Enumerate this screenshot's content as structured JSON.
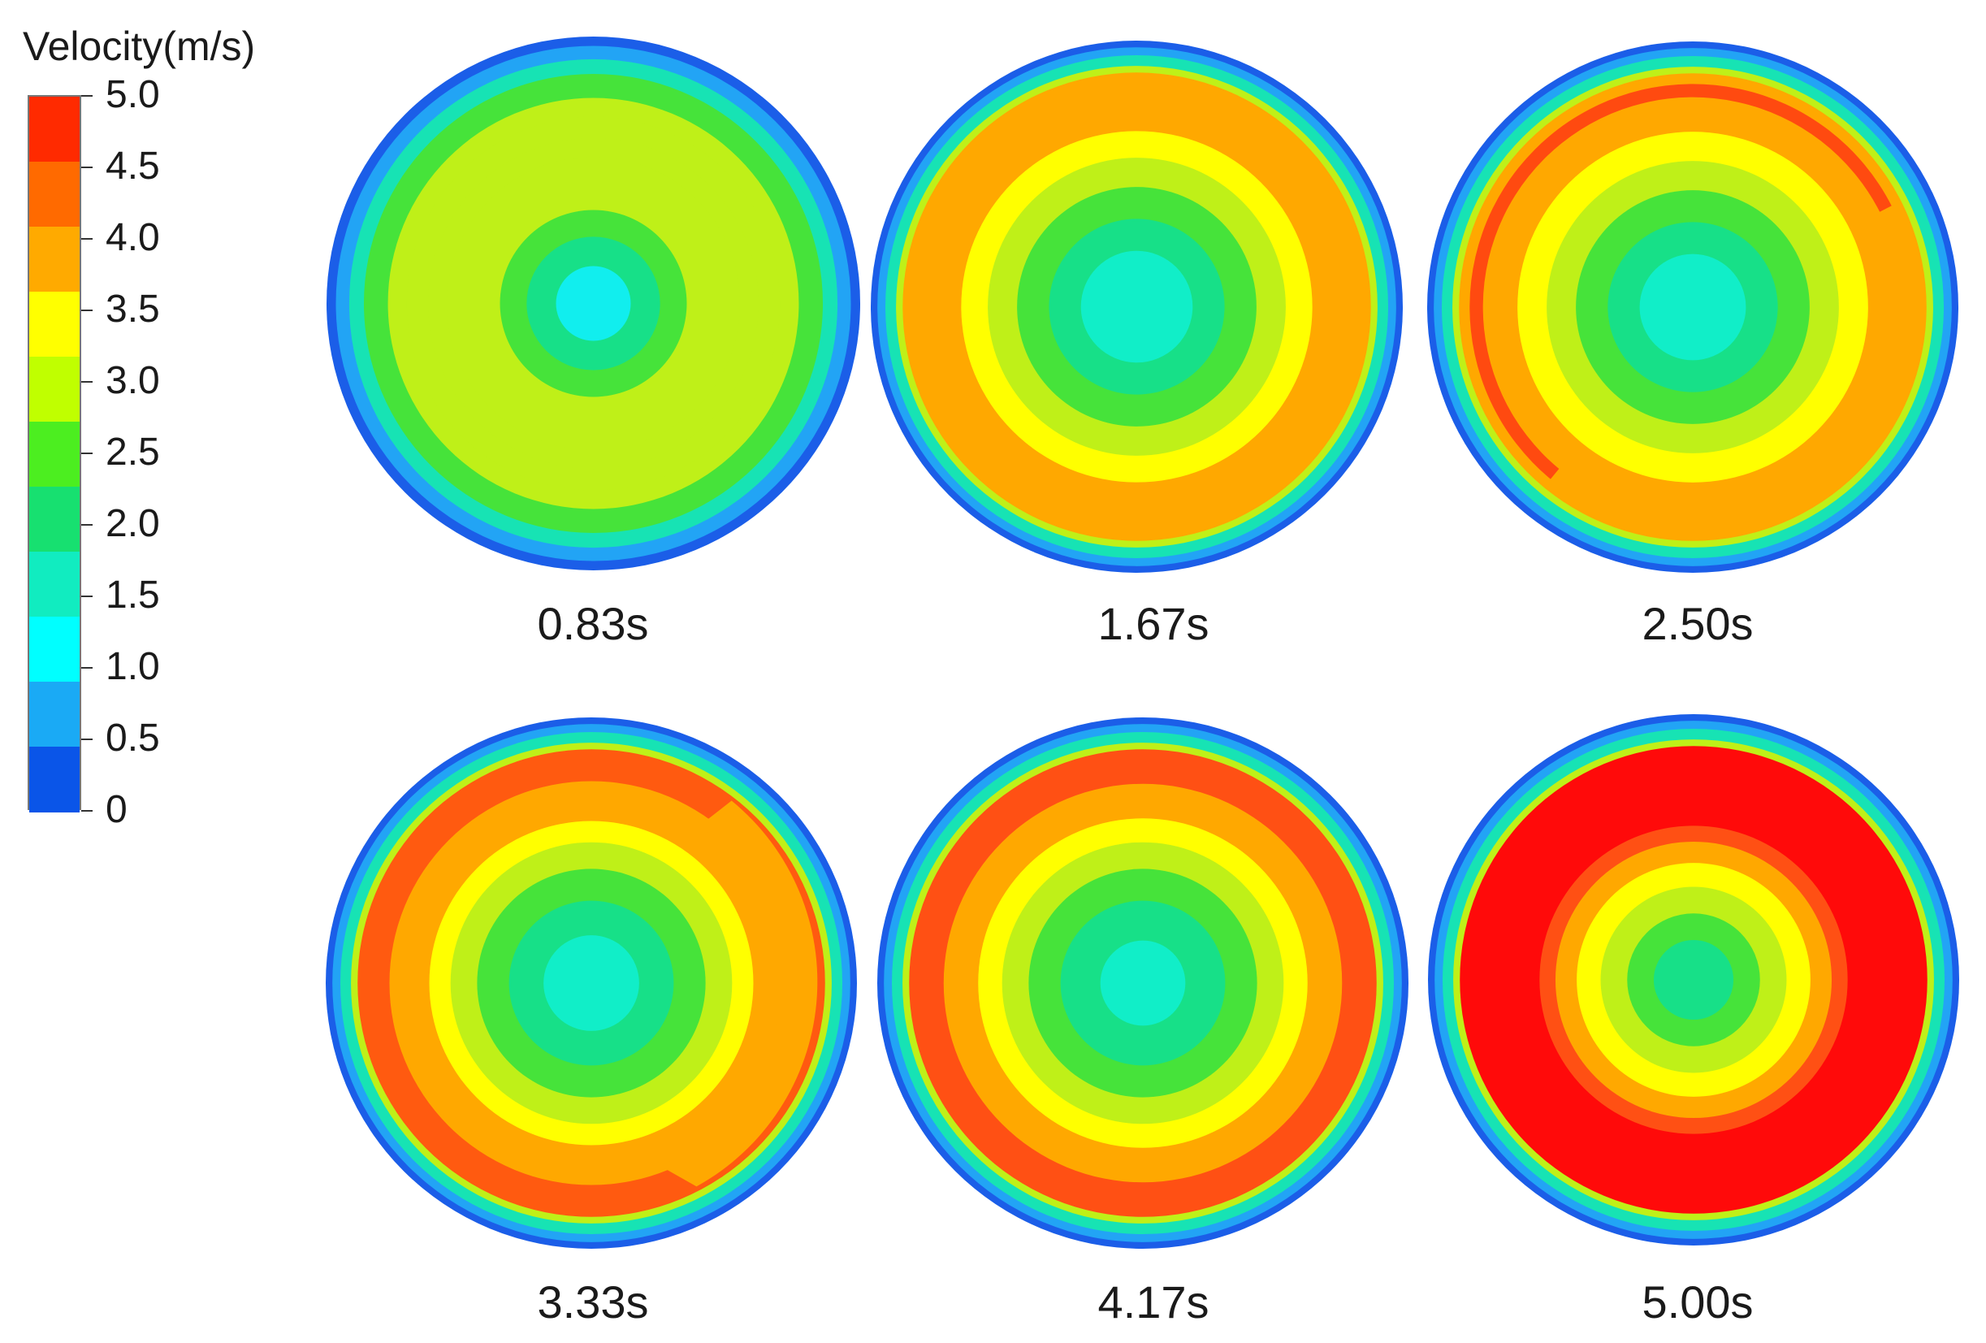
{
  "legend": {
    "title": "Velocity(m/s)",
    "ticks": [
      "5.0",
      "4.5",
      "4.0",
      "3.5",
      "3.0",
      "2.5",
      "2.0",
      "1.5",
      "1.0",
      "0.5",
      "0"
    ],
    "bands": [
      "#ff2a00",
      "#ff6a00",
      "#ffaa00",
      "#ffff00",
      "#c0ff00",
      "#4cee20",
      "#17e070",
      "#11ecc0",
      "#00ffff",
      "#1aaaf5",
      "#0a55e8"
    ]
  },
  "panels": [
    {
      "label": "0.83s",
      "rings": [
        "#1b5ee8",
        "#22a4f5",
        "#17e3b4",
        "#46e33a",
        "#bff018",
        "#bff018",
        "#bff018",
        "#bff018",
        "#46e33a",
        "#17e088",
        "#11eeee"
      ]
    },
    {
      "label": "1.67s",
      "rings": [
        "#1b5ee8",
        "#22a4f5",
        "#17e3b4",
        "#bff018",
        "#ffa800",
        "#ffff00",
        "#bff018",
        "#46e33a",
        "#17e088",
        "#11eec8"
      ]
    },
    {
      "label": "2.50s",
      "rings": [
        "#1b5ee8",
        "#22a4f5",
        "#17e3b4",
        "#bff018",
        "#ffa800",
        "#ffff00",
        "#bff018",
        "#46e33a",
        "#17e088",
        "#11eec8"
      ]
    },
    {
      "label": "3.33s",
      "rings": [
        "#1b5ee8",
        "#22a4f5",
        "#17e3b4",
        "#bff018",
        "#ff5a10",
        "#ffa800",
        "#ffff00",
        "#bff018",
        "#46e33a",
        "#17e088",
        "#11eec8"
      ]
    },
    {
      "label": "4.17s",
      "rings": [
        "#1b5ee8",
        "#22a4f5",
        "#17e3b4",
        "#bff018",
        "#ff5014",
        "#ffa800",
        "#ffff00",
        "#bff018",
        "#46e33a",
        "#17e088",
        "#11eec8"
      ]
    },
    {
      "label": "5.00s",
      "rings": [
        "#1b5ee8",
        "#22a4f5",
        "#17e3b4",
        "#bff018",
        "#ff0a0a",
        "#ff5014",
        "#ffa800",
        "#ffff00",
        "#bff018",
        "#46e33a",
        "#17e088"
      ]
    }
  ]
}
